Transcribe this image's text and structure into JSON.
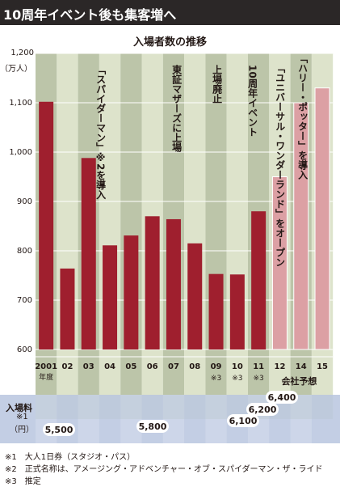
{
  "header": {
    "title": "10周年イベント後も集客増へ"
  },
  "chart_data": {
    "type": "bar",
    "title": "入場者数の推移",
    "ylabel_value": "1,200",
    "y_unit": "（万人）",
    "ylim": [
      600,
      1200
    ],
    "yticks": [
      "600",
      "700",
      "800",
      "900",
      "1,000",
      "1,100",
      "1,200"
    ],
    "categories": [
      "2001",
      "02",
      "03",
      "04",
      "05",
      "06",
      "07",
      "08",
      "09",
      "10",
      "11",
      "12",
      "14",
      "15"
    ],
    "first_category_sub": "年度",
    "estimate_marks": [
      "",
      "",
      "",
      "",
      "",
      "",
      "",
      "",
      "※3",
      "※3",
      "※3",
      "",
      "",
      ""
    ],
    "values": [
      1102,
      764,
      988,
      811,
      831,
      870,
      864,
      815,
      753,
      752,
      880,
      950,
      1100,
      1130
    ],
    "forecast_from_index": 11,
    "forecast_label": "会社予想",
    "annotations": [
      {
        "text": "「スパイダーマン」※2を導入"
      },
      {
        "text": "東証マザーズに上場"
      },
      {
        "text": "上場廃止"
      },
      {
        "text": "10周年イベント"
      },
      {
        "text": "「ユニバーサル・ワンダーランド」をオープン"
      },
      {
        "text": "「ハリー・ポッター」を導入"
      }
    ],
    "admission": {
      "label": "入場料",
      "note": "※1",
      "unit": "（円）",
      "points": [
        {
          "value": "5,500"
        },
        {
          "value": "5,800"
        },
        {
          "value": "6,100"
        },
        {
          "value": "6,200"
        },
        {
          "value": "6,400"
        }
      ]
    },
    "colors": {
      "bar": "#9f1f2e",
      "forecast_bar": "#dca0a4",
      "stripe_dark": "#bcc5a9",
      "stripe_light": "#dde3cb",
      "admission_band": "#b9c6df",
      "header": "#2b2727"
    }
  },
  "footnotes": [
    "※1　大人1日券（スタジオ・パス）",
    "※2　正式名称は、アメージング・アドベンチャー・オブ・スパイダーマン・ザ・ライド",
    "※3　推定"
  ]
}
